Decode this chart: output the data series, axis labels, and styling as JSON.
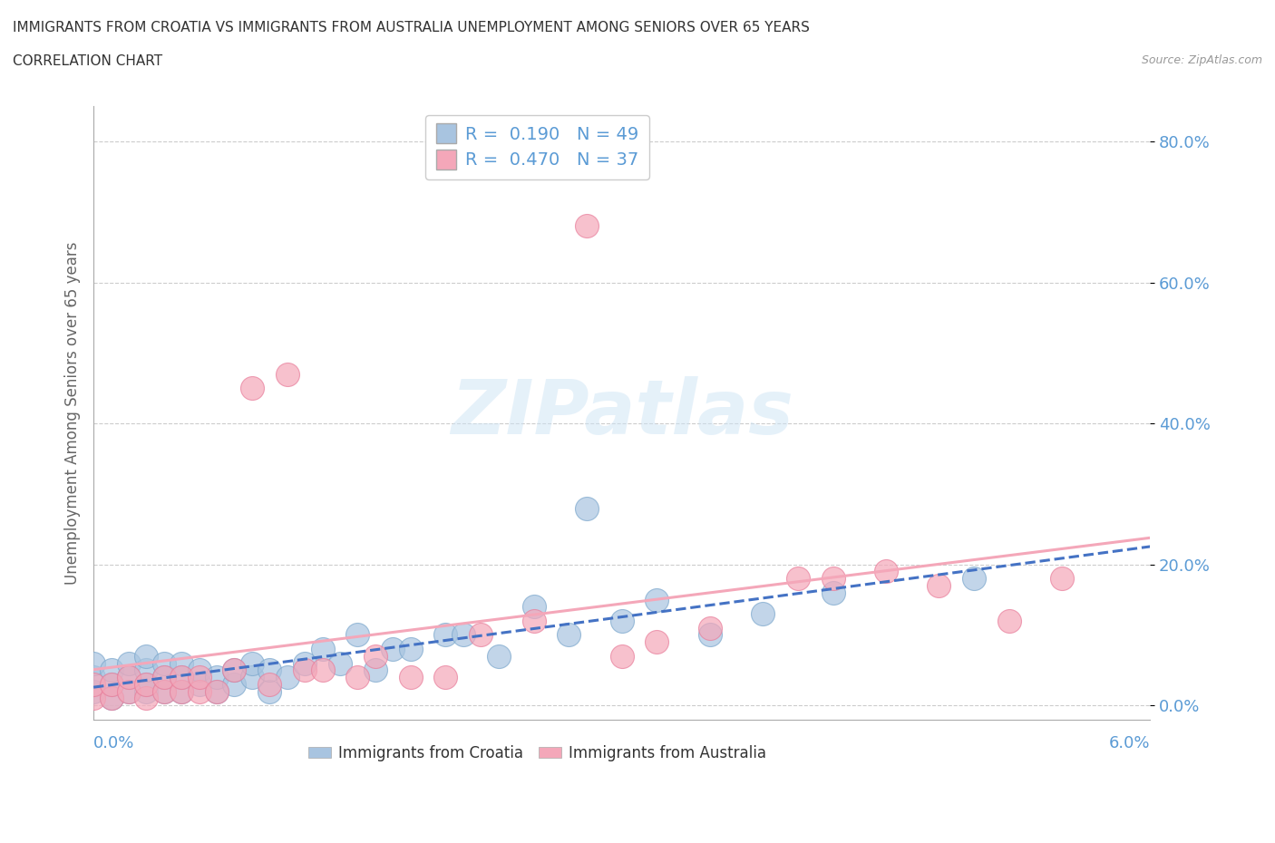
{
  "title_line1": "IMMIGRANTS FROM CROATIA VS IMMIGRANTS FROM AUSTRALIA UNEMPLOYMENT AMONG SENIORS OVER 65 YEARS",
  "title_line2": "CORRELATION CHART",
  "source": "Source: ZipAtlas.com",
  "xlabel_bottom_left": "0.0%",
  "xlabel_bottom_right": "6.0%",
  "ylabel": "Unemployment Among Seniors over 65 years",
  "y_tick_labels": [
    "0.0%",
    "20.0%",
    "40.0%",
    "60.0%",
    "80.0%"
  ],
  "y_tick_values": [
    0.0,
    0.2,
    0.4,
    0.6,
    0.8
  ],
  "xlim": [
    0.0,
    0.06
  ],
  "ylim": [
    -0.02,
    0.85
  ],
  "croatia_color": "#a8c4e0",
  "australia_color": "#f4a7b9",
  "croatia_edge_color": "#7ba7cc",
  "australia_edge_color": "#e87d9a",
  "croatia_R": 0.19,
  "croatia_N": 49,
  "australia_R": 0.47,
  "australia_N": 37,
  "legend_label_croatia": "Immigrants from Croatia",
  "legend_label_australia": "Immigrants from Australia",
  "watermark": "ZIPatlas",
  "croatia_scatter_x": [
    0.0,
    0.0,
    0.0,
    0.001,
    0.001,
    0.001,
    0.002,
    0.002,
    0.002,
    0.003,
    0.003,
    0.003,
    0.003,
    0.004,
    0.004,
    0.004,
    0.005,
    0.005,
    0.005,
    0.006,
    0.006,
    0.007,
    0.007,
    0.008,
    0.008,
    0.009,
    0.009,
    0.01,
    0.01,
    0.011,
    0.012,
    0.013,
    0.014,
    0.015,
    0.016,
    0.017,
    0.018,
    0.02,
    0.021,
    0.023,
    0.025,
    0.027,
    0.028,
    0.03,
    0.032,
    0.035,
    0.038,
    0.042,
    0.05
  ],
  "croatia_scatter_y": [
    0.02,
    0.04,
    0.06,
    0.01,
    0.03,
    0.05,
    0.02,
    0.04,
    0.06,
    0.02,
    0.03,
    0.05,
    0.07,
    0.02,
    0.04,
    0.06,
    0.02,
    0.04,
    0.06,
    0.03,
    0.05,
    0.02,
    0.04,
    0.03,
    0.05,
    0.04,
    0.06,
    0.02,
    0.05,
    0.04,
    0.06,
    0.08,
    0.06,
    0.1,
    0.05,
    0.08,
    0.08,
    0.1,
    0.1,
    0.07,
    0.14,
    0.1,
    0.28,
    0.12,
    0.15,
    0.1,
    0.13,
    0.16,
    0.18
  ],
  "australia_scatter_x": [
    0.0,
    0.0,
    0.001,
    0.001,
    0.002,
    0.002,
    0.003,
    0.003,
    0.004,
    0.004,
    0.005,
    0.005,
    0.006,
    0.006,
    0.007,
    0.008,
    0.009,
    0.01,
    0.011,
    0.012,
    0.013,
    0.015,
    0.016,
    0.018,
    0.02,
    0.022,
    0.025,
    0.028,
    0.03,
    0.032,
    0.035,
    0.04,
    0.042,
    0.045,
    0.048,
    0.052,
    0.055
  ],
  "australia_scatter_y": [
    0.01,
    0.03,
    0.01,
    0.03,
    0.02,
    0.04,
    0.01,
    0.03,
    0.02,
    0.04,
    0.02,
    0.04,
    0.02,
    0.04,
    0.02,
    0.05,
    0.45,
    0.03,
    0.47,
    0.05,
    0.05,
    0.04,
    0.07,
    0.04,
    0.04,
    0.1,
    0.12,
    0.68,
    0.07,
    0.09,
    0.11,
    0.18,
    0.18,
    0.19,
    0.17,
    0.12,
    0.18
  ],
  "grid_color": "#cccccc",
  "bg_color": "#ffffff",
  "title_color": "#333333",
  "axis_label_color": "#666666",
  "tick_color": "#5b9bd5",
  "regression_croatia_solid_color": "#4472c4",
  "regression_croatia_dashed_color": "#7bafd4",
  "regression_australia_color": "#f4a7b9"
}
